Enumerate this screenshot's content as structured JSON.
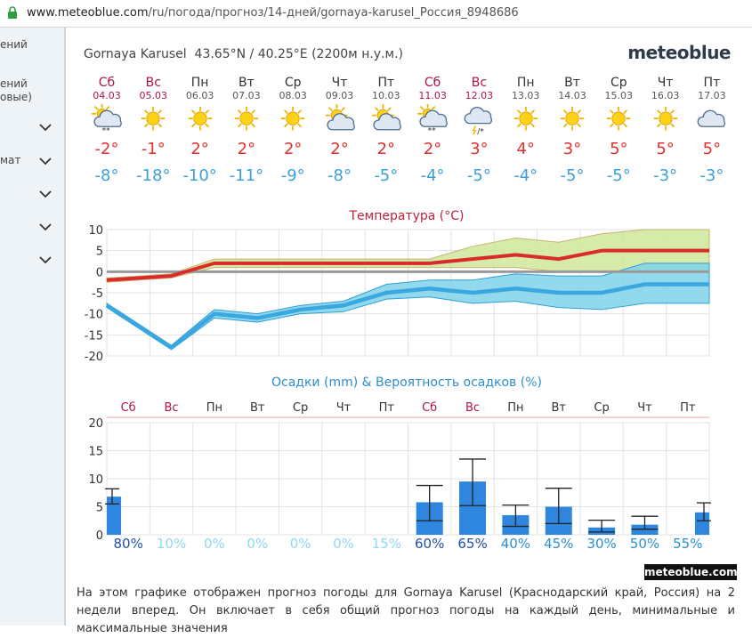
{
  "browser": {
    "url_domain": "www.meteoblue.com",
    "url_path": "/ru/погода/прогноз/14-дней/gornaya-karusel_Россия_8948686"
  },
  "sidebar": {
    "items": [
      {
        "label": "ений"
      },
      {
        "label": "ений"
      },
      {
        "label": "овые)"
      },
      {
        "label": "мат"
      }
    ]
  },
  "header": {
    "location": "Gornaya Karusel",
    "coords": "43.65°N / 40.25°E (2200м н.у.м.)",
    "brand": "meteoblue"
  },
  "days": [
    {
      "name": "Сб",
      "date": "04.03",
      "weekend": true,
      "icon": "sun-cloud-snow-icon",
      "tmax": "-2°",
      "tmin": "-8°"
    },
    {
      "name": "Вс",
      "date": "05.03",
      "weekend": true,
      "icon": "sun-icon",
      "tmax": "-1°",
      "tmin": "-18°"
    },
    {
      "name": "Пн",
      "date": "06.03",
      "weekend": false,
      "icon": "sun-icon",
      "tmax": "2°",
      "tmin": "-10°"
    },
    {
      "name": "Вт",
      "date": "07.03",
      "weekend": false,
      "icon": "sun-icon",
      "tmax": "2°",
      "tmin": "-11°"
    },
    {
      "name": "Ср",
      "date": "08.03",
      "weekend": false,
      "icon": "sun-icon",
      "tmax": "2°",
      "tmin": "-9°"
    },
    {
      "name": "Чт",
      "date": "09.03",
      "weekend": false,
      "icon": "sun-cloud-icon",
      "tmax": "2°",
      "tmin": "-8°"
    },
    {
      "name": "Пт",
      "date": "10.03",
      "weekend": false,
      "icon": "sun-cloud-icon",
      "tmax": "2°",
      "tmin": "-5°"
    },
    {
      "name": "Сб",
      "date": "11.03",
      "weekend": true,
      "icon": "sun-cloud-snow-icon",
      "tmax": "2°",
      "tmin": "-4°"
    },
    {
      "name": "Вс",
      "date": "12.03",
      "weekend": true,
      "icon": "cloud-snow-storm-icon",
      "tmax": "3°",
      "tmin": "-5°"
    },
    {
      "name": "Пн",
      "date": "13.03",
      "weekend": false,
      "icon": "sun-icon",
      "tmax": "4°",
      "tmin": "-4°"
    },
    {
      "name": "Вт",
      "date": "14.03",
      "weekend": false,
      "icon": "sun-icon",
      "tmax": "3°",
      "tmin": "-5°"
    },
    {
      "name": "Ср",
      "date": "15.03",
      "weekend": false,
      "icon": "sun-icon",
      "tmax": "5°",
      "tmin": "-5°"
    },
    {
      "name": "Чт",
      "date": "16.03",
      "weekend": false,
      "icon": "sun-icon",
      "tmax": "5°",
      "tmin": "-3°"
    },
    {
      "name": "Пт",
      "date": "17.03",
      "weekend": false,
      "icon": "cloud-icon",
      "tmax": "5°",
      "tmin": "-3°"
    }
  ],
  "colors": {
    "weekend": "#b0124a",
    "tmax": "#e03030",
    "tmin": "#3aa0d8",
    "bar": "#2e86de",
    "prob_high": "#1f4fa8",
    "prob_low": "#8fd8f0"
  },
  "chart_data": [
    {
      "type": "line",
      "title": "Температура (°C)",
      "categories": [
        "04.03",
        "05.03",
        "06.03",
        "07.03",
        "08.03",
        "09.03",
        "10.03",
        "11.03",
        "12.03",
        "13.03",
        "14.03",
        "15.03",
        "16.03",
        "17.03"
      ],
      "ylim": [
        -20,
        10
      ],
      "yticks": [
        10,
        5,
        0,
        -5,
        -10,
        -15,
        -20
      ],
      "grid": true,
      "series": [
        {
          "values": [
            -2,
            -1,
            2,
            2,
            2,
            2,
            2,
            2,
            3,
            4,
            3,
            5,
            5,
            5
          ],
          "color": "#d92b2b"
        },
        {
          "values": [
            -8,
            -18,
            -10,
            -11,
            -9,
            -8,
            -5,
            -4,
            -5,
            -4,
            -5,
            -5,
            -3,
            -3
          ],
          "color": "#3aa7e0"
        }
      ],
      "bands": [
        {
          "upper": [
            -1.5,
            -0.5,
            3,
            3,
            3,
            3,
            3,
            3,
            6,
            8,
            7,
            9,
            10,
            10
          ],
          "lower": [
            -2.5,
            -1.5,
            1,
            1,
            1,
            1,
            1,
            1,
            1,
            1,
            0,
            0,
            0,
            0
          ],
          "color": "#cfe79a"
        },
        {
          "upper": [
            -7.5,
            -17.5,
            -9,
            -10,
            -8,
            -7,
            -3,
            -2,
            -2,
            -0.5,
            -1,
            -1,
            2,
            2
          ],
          "lower": [
            -8.5,
            -18.5,
            -11,
            -12,
            -10,
            -9.5,
            -6.5,
            -6,
            -7.5,
            -7,
            -8.5,
            -9,
            -7.5,
            -7.5
          ],
          "color": "#7fd2ea"
        }
      ]
    },
    {
      "type": "bar",
      "title": "Осадки (mm) & Вероятность осадков (%)",
      "categories": [
        "Сб",
        "Вс",
        "Пн",
        "Вт",
        "Ср",
        "Чт",
        "Пт",
        "Сб",
        "Вс",
        "Пн",
        "Вт",
        "Ср",
        "Чт",
        "Пт"
      ],
      "ylim": [
        0,
        20
      ],
      "yticks": [
        20,
        15,
        10,
        5,
        0
      ],
      "values": [
        6.8,
        0,
        0,
        0,
        0,
        0,
        0,
        5.8,
        9.5,
        3.5,
        5,
        1.3,
        1.8,
        4
      ],
      "range_low": [
        5.5,
        null,
        null,
        null,
        null,
        null,
        null,
        2.5,
        5.2,
        1.5,
        2,
        0.5,
        1,
        2.5
      ],
      "range_high": [
        8.2,
        null,
        null,
        null,
        null,
        null,
        null,
        8.8,
        13.5,
        5.3,
        8.3,
        2.6,
        3.3,
        5.7
      ],
      "probabilities": [
        "80%",
        "10%",
        "0%",
        "0%",
        "0%",
        "0%",
        "15%",
        "60%",
        "65%",
        "40%",
        "45%",
        "30%",
        "50%",
        "55%"
      ]
    }
  ],
  "footer": {
    "badge": "meteoblue.com",
    "description": "На этом графике отображен прогноз погоды для Gornaya Karusel (Краснодарский край, Россия) на 2 недели вперед. Он включает в себя общий прогноз погоды на каждый день, минимальные и максимальные значения"
  }
}
